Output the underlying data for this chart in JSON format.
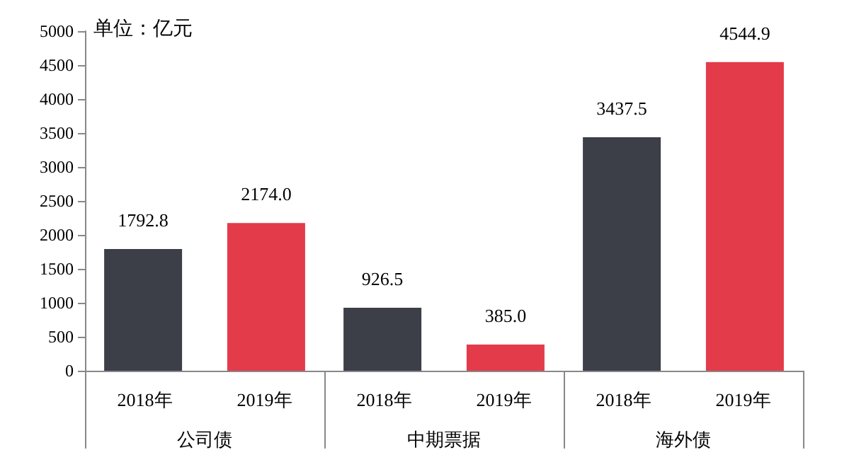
{
  "chart_data": {
    "type": "bar",
    "ylabel": "单位：亿元",
    "categories": [
      "公司债",
      "中期票据",
      "海外债"
    ],
    "series": [
      {
        "name": "2018年",
        "color": "#3c3e48",
        "values": [
          1792.8,
          926.5,
          3437.5
        ],
        "value_labels": [
          "1792.8",
          "926.5",
          "3437.5"
        ]
      },
      {
        "name": "2019年",
        "color": "#e33b4a",
        "values": [
          2174,
          385,
          4544.9
        ],
        "value_labels": [
          "2174.0",
          "385.0",
          "4544.9"
        ]
      }
    ],
    "ylim": [
      0,
      5000
    ],
    "yticks": [
      0,
      500,
      1000,
      1500,
      2000,
      2500,
      3000,
      3500,
      4000,
      4500,
      5000
    ],
    "grid": false,
    "legend": false
  }
}
